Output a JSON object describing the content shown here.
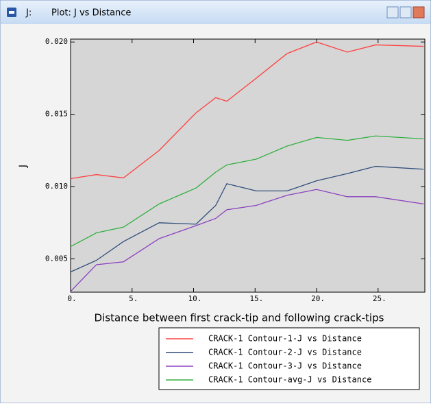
{
  "chart_data": {
    "type": "line",
    "viewport_label": "J:",
    "title": "Plot: J vs Distance",
    "xlabel": "Distance between first crack-tip and following crack-tips",
    "ylabel": "J",
    "x": [
      0,
      2.1,
      4.3,
      7.2,
      10.2,
      11.8,
      12.7,
      15.1,
      17.6,
      20.0,
      22.5,
      24.8,
      28.7
    ],
    "series": [
      {
        "name": "CRACK-1 Contour-1-J vs Distance",
        "color": "#ff4040",
        "values": [
          0.01055,
          0.01083,
          0.0106,
          0.0125,
          0.0151,
          0.01615,
          0.0159,
          0.0175,
          0.0192,
          0.02,
          0.0193,
          0.0198,
          0.0197
        ]
      },
      {
        "name": "CRACK-1 Contour-2-J vs Distance",
        "color": "#2e4d7a",
        "values": [
          0.0041,
          0.0049,
          0.0062,
          0.0075,
          0.0074,
          0.0087,
          0.0102,
          0.0097,
          0.0097,
          0.0104,
          0.0109,
          0.0114,
          0.0112
        ]
      },
      {
        "name": "CRACK-1 Contour-3-J vs Distance",
        "color": "#8a40c0",
        "values": [
          0.00275,
          0.0046,
          0.0048,
          0.0064,
          0.0073,
          0.0078,
          0.0084,
          0.0087,
          0.0094,
          0.0098,
          0.0093,
          0.0093,
          0.0088
        ]
      },
      {
        "name": "CRACK-1 Contour-avg-J vs Distance",
        "color": "#30b040",
        "values": [
          0.00585,
          0.0068,
          0.0072,
          0.0088,
          0.0099,
          0.011,
          0.0115,
          0.0119,
          0.0128,
          0.0134,
          0.0132,
          0.0135,
          0.0133
        ]
      }
    ],
    "xlim": [
      0,
      28.8
    ],
    "ylim": [
      0.0027,
      0.0202
    ],
    "xticks": [
      {
        "value": 0,
        "label": "0."
      },
      {
        "value": 5,
        "label": "5."
      },
      {
        "value": 10,
        "label": "10."
      },
      {
        "value": 15,
        "label": "15."
      },
      {
        "value": 20,
        "label": "20."
      },
      {
        "value": 25,
        "label": "25."
      }
    ],
    "yticks": [
      {
        "value": 0.005,
        "label": "0.005"
      },
      {
        "value": 0.01,
        "label": "0.010"
      },
      {
        "value": 0.015,
        "label": "0.015"
      },
      {
        "value": 0.02,
        "label": "0.020"
      }
    ],
    "legend": "lower-right"
  }
}
